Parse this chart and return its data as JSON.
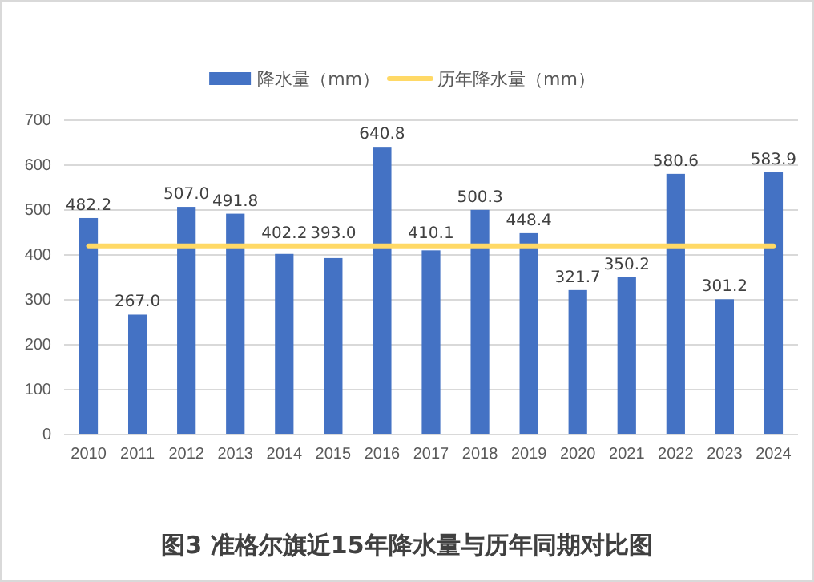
{
  "chart_data": {
    "type": "bar",
    "title": "图3  准格尔旗近15年降水量与历年同期对比图",
    "categories": [
      "2010",
      "2011",
      "2012",
      "2013",
      "2014",
      "2015",
      "2016",
      "2017",
      "2018",
      "2019",
      "2020",
      "2021",
      "2022",
      "2023",
      "2024"
    ],
    "series": [
      {
        "name": "降水量（mm）",
        "color": "#4472c4",
        "values": [
          482.2,
          267.0,
          507.0,
          491.8,
          402.2,
          393.0,
          640.8,
          410.1,
          500.3,
          448.4,
          321.7,
          350.2,
          580.6,
          301.2,
          583.9
        ],
        "value_labels": [
          "482.2",
          "267.0",
          "507.0",
          "491.8",
          "402.2",
          "393.0",
          "640.8",
          "410.1",
          "500.3",
          "448.4",
          "321.7",
          "350.2",
          "580.6",
          "301.2",
          "583.9"
        ]
      },
      {
        "name": "历年降水量（mm）",
        "type": "line",
        "color": "#ffd966",
        "values": [
          420,
          420,
          420,
          420,
          420,
          420,
          420,
          420,
          420,
          420,
          420,
          420,
          420,
          420,
          420
        ]
      }
    ],
    "ylim": [
      0,
      700
    ],
    "yticks": [
      0,
      100,
      200,
      300,
      400,
      500,
      600,
      700
    ],
    "grid": "y",
    "legend": "top"
  }
}
